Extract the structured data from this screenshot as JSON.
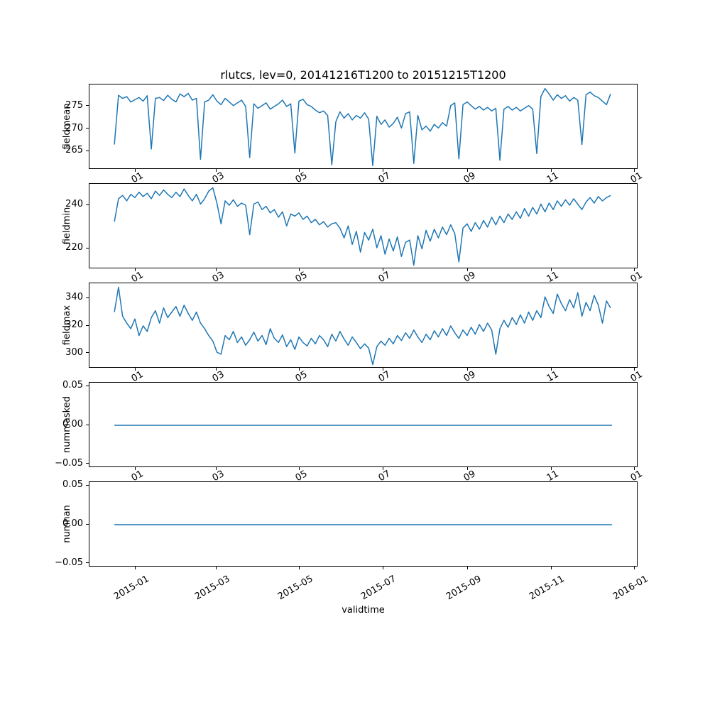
{
  "chart_data": {
    "type": "line",
    "title": "rlutcs, lev=0, 20141216T1200 to 20151215T1200",
    "xlabel": "validtime",
    "line_color": "#1f77b4",
    "x_unit": "days since 2014-12-16T12:00",
    "xlim": [
      -18.25,
      383.25
    ],
    "grid": false,
    "legend": "none",
    "xticks": [
      {
        "day": 16,
        "label": "2015-01",
        "short": "01"
      },
      {
        "day": 75,
        "label": "2015-03",
        "short": "03"
      },
      {
        "day": 136,
        "label": "2015-05",
        "short": "05"
      },
      {
        "day": 197,
        "label": "2015-07",
        "short": "07"
      },
      {
        "day": 259,
        "label": "2015-09",
        "short": "09"
      },
      {
        "day": 320,
        "label": "2015-11",
        "short": "11"
      },
      {
        "day": 381,
        "label": "2016-01",
        "short": "01"
      }
    ],
    "subplots": [
      {
        "ylabel": "fieldmean",
        "ylim": [
          260.9,
          279.9
        ],
        "yticks": [
          {
            "v": 265,
            "label": "265"
          },
          {
            "v": 270,
            "label": "270"
          },
          {
            "v": 275,
            "label": "275"
          }
        ],
        "x_start": 0,
        "x_step": 3,
        "y": [
          266.5,
          277.5,
          276.8,
          277.2,
          276.0,
          276.5,
          277.0,
          276.2,
          277.4,
          265.5,
          276.8,
          277.0,
          276.3,
          277.5,
          276.6,
          276.0,
          277.8,
          277.2,
          277.9,
          276.4,
          276.8,
          263.2,
          276.0,
          276.4,
          277.6,
          276.2,
          275.4,
          276.8,
          276.0,
          275.2,
          275.8,
          276.4,
          275.0,
          263.6,
          275.6,
          274.6,
          275.2,
          275.8,
          274.4,
          275.0,
          275.6,
          276.4,
          275.0,
          275.6,
          264.6,
          276.2,
          276.6,
          275.4,
          275.0,
          274.2,
          273.6,
          274.0,
          273.0,
          262.0,
          271.6,
          273.8,
          272.4,
          273.4,
          272.0,
          273.0,
          272.4,
          273.6,
          272.2,
          261.8,
          272.8,
          271.0,
          272.0,
          270.4,
          271.2,
          272.6,
          270.2,
          273.4,
          273.8,
          262.3,
          273.0,
          269.8,
          270.6,
          269.5,
          271.0,
          270.2,
          271.4,
          270.6,
          275.2,
          275.8,
          263.3,
          275.4,
          276.0,
          275.2,
          274.4,
          275.0,
          274.2,
          274.8,
          274.0,
          274.6,
          263.0,
          274.4,
          275.0,
          274.2,
          274.8,
          274.0,
          274.6,
          275.2,
          274.4,
          264.5,
          277.2,
          279.0,
          277.8,
          276.4,
          277.6,
          276.8,
          277.4,
          276.2,
          277.0,
          276.4,
          266.5,
          277.6,
          278.2,
          277.4,
          277.0,
          276.2,
          275.4,
          277.8
        ]
      },
      {
        "ylabel": "fieldmin",
        "ylim": [
          210.7,
          249.8
        ],
        "yticks": [
          {
            "v": 220,
            "label": "220"
          },
          {
            "v": 240,
            "label": "240"
          }
        ],
        "x_start": 0,
        "x_step": 3,
        "y": [
          232.5,
          243.0,
          244.5,
          242.0,
          245.0,
          243.5,
          246.0,
          244.0,
          245.5,
          243.0,
          246.5,
          244.5,
          247.0,
          245.0,
          243.5,
          246.0,
          244.0,
          247.5,
          244.5,
          242.0,
          245.0,
          240.5,
          243.0,
          246.5,
          248.0,
          241.0,
          231.5,
          242.0,
          240.0,
          242.5,
          239.5,
          241.0,
          240.0,
          226.5,
          240.5,
          241.5,
          238.0,
          239.5,
          236.5,
          238.0,
          234.5,
          237.0,
          230.5,
          236.0,
          235.0,
          236.5,
          233.5,
          235.0,
          232.0,
          233.5,
          231.0,
          232.5,
          230.0,
          231.5,
          232.0,
          229.5,
          225.0,
          230.5,
          222.0,
          228.0,
          218.5,
          227.5,
          224.0,
          229.0,
          220.5,
          226.0,
          217.5,
          224.5,
          219.0,
          225.5,
          216.5,
          223.0,
          224.0,
          212.5,
          226.0,
          220.0,
          228.5,
          223.5,
          229.0,
          225.0,
          230.0,
          226.5,
          231.0,
          227.0,
          214.0,
          229.5,
          231.5,
          228.0,
          232.0,
          229.0,
          233.0,
          230.0,
          234.5,
          231.0,
          235.0,
          232.0,
          236.0,
          233.5,
          237.0,
          234.0,
          238.5,
          235.0,
          239.0,
          236.0,
          240.5,
          237.0,
          241.0,
          238.0,
          242.0,
          239.5,
          242.5,
          240.0,
          243.0,
          240.5,
          238.0,
          241.5,
          243.5,
          241.0,
          244.0,
          242.0,
          243.5,
          244.5
        ]
      },
      {
        "ylabel": "fieldmax",
        "ylim": [
          289.2,
          350.8
        ],
        "yticks": [
          {
            "v": 300,
            "label": "300"
          },
          {
            "v": 320,
            "label": "320"
          },
          {
            "v": 340,
            "label": "340"
          }
        ],
        "x_start": 0,
        "x_step": 3,
        "y": [
          330.0,
          348.0,
          327.0,
          322.0,
          318.0,
          325.0,
          313.0,
          320.0,
          316.0,
          326.0,
          331.0,
          322.0,
          333.0,
          326.0,
          330.0,
          334.0,
          327.0,
          335.0,
          329.0,
          324.0,
          330.0,
          322.0,
          318.0,
          313.0,
          309.0,
          301.0,
          299.5,
          313.0,
          310.0,
          316.0,
          308.0,
          312.0,
          306.0,
          310.0,
          315.5,
          309.0,
          313.0,
          306.5,
          318.0,
          311.0,
          308.0,
          313.5,
          305.0,
          310.0,
          303.0,
          312.0,
          308.0,
          305.5,
          311.0,
          307.0,
          313.0,
          310.0,
          305.0,
          314.0,
          309.0,
          316.0,
          310.5,
          306.0,
          312.0,
          308.0,
          303.5,
          307.0,
          304.0,
          292.0,
          305.0,
          309.0,
          306.0,
          311.0,
          307.0,
          313.0,
          309.5,
          315.0,
          311.0,
          317.0,
          312.0,
          308.0,
          314.0,
          310.0,
          316.5,
          312.0,
          318.0,
          313.0,
          320.0,
          315.0,
          311.0,
          317.0,
          313.0,
          319.0,
          314.0,
          321.0,
          316.0,
          322.0,
          317.0,
          299.5,
          318.0,
          324.0,
          319.0,
          326.0,
          321.0,
          328.0,
          322.0,
          330.0,
          324.0,
          331.0,
          326.0,
          341.0,
          334.0,
          329.0,
          343.0,
          336.0,
          331.0,
          339.0,
          333.0,
          344.0,
          327.0,
          337.0,
          331.0,
          342.0,
          335.0,
          322.0,
          338.0,
          333.0
        ]
      },
      {
        "ylabel": "nummasked",
        "ylim": [
          -0.055,
          0.055
        ],
        "yticks": [
          {
            "v": -0.05,
            "label": "−0.05"
          },
          {
            "v": 0,
            "label": "0.00"
          },
          {
            "v": 0.05,
            "label": "0.05"
          }
        ],
        "x": [
          0,
          364
        ],
        "y": [
          0,
          0
        ]
      },
      {
        "ylabel": "numnan",
        "ylim": [
          -0.055,
          0.055
        ],
        "yticks": [
          {
            "v": -0.05,
            "label": "−0.05"
          },
          {
            "v": 0,
            "label": "0.00"
          },
          {
            "v": 0.05,
            "label": "0.05"
          }
        ],
        "x": [
          0,
          364
        ],
        "y": [
          0,
          0
        ]
      }
    ]
  }
}
